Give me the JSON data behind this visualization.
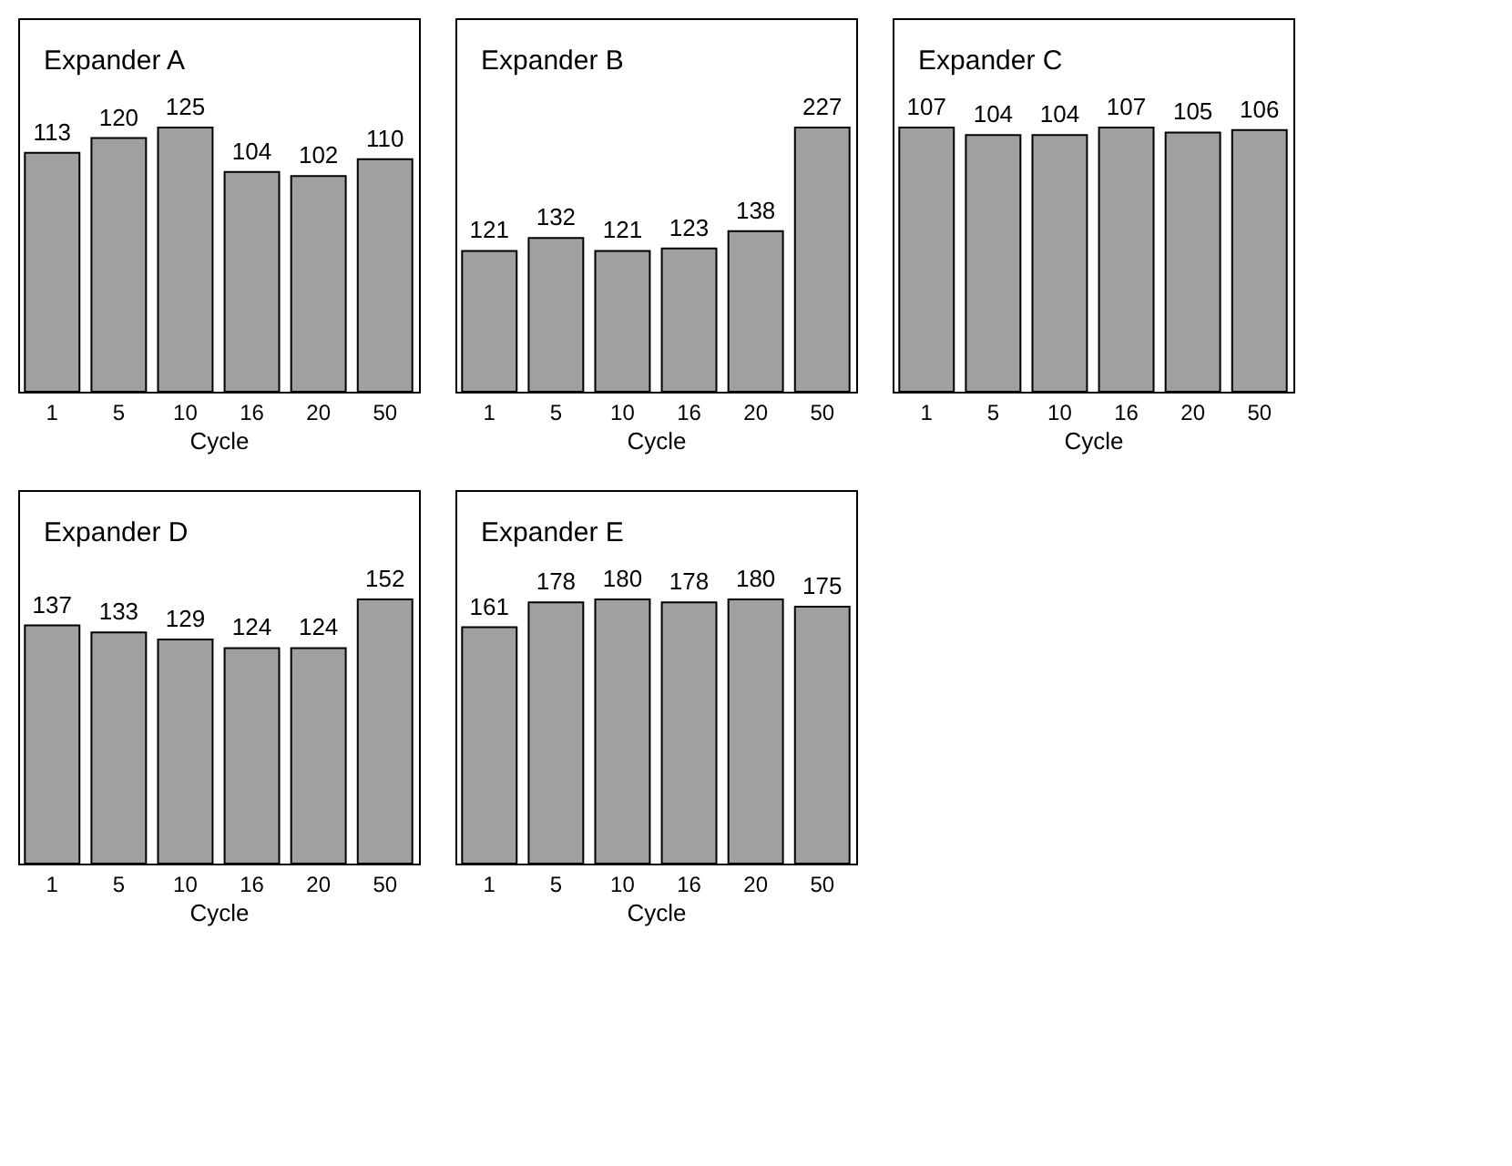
{
  "chart_data": [
    {
      "type": "bar",
      "title": "Expander A",
      "xlabel": "Cycle",
      "categories": [
        "1",
        "5",
        "10",
        "16",
        "20",
        "50"
      ],
      "values": [
        113,
        120,
        125,
        104,
        102,
        110
      ],
      "color": "#a0a0a0",
      "data_labels": true
    },
    {
      "type": "bar",
      "title": "Expander B",
      "xlabel": "Cycle",
      "categories": [
        "1",
        "5",
        "10",
        "16",
        "20",
        "50"
      ],
      "values": [
        121,
        132,
        121,
        123,
        138,
        227
      ],
      "color": "#a0a0a0",
      "data_labels": true
    },
    {
      "type": "bar",
      "title": "Expander C",
      "xlabel": "Cycle",
      "categories": [
        "1",
        "5",
        "10",
        "16",
        "20",
        "50"
      ],
      "values": [
        107,
        104,
        104,
        107,
        105,
        106
      ],
      "color": "#a0a0a0",
      "data_labels": true
    },
    {
      "type": "bar",
      "title": "Expander D",
      "xlabel": "Cycle",
      "categories": [
        "1",
        "5",
        "10",
        "16",
        "20",
        "50"
      ],
      "values": [
        137,
        133,
        129,
        124,
        124,
        152
      ],
      "color": "#a0a0a0",
      "data_labels": true
    },
    {
      "type": "bar",
      "title": "Expander E",
      "xlabel": "Cycle",
      "categories": [
        "1",
        "5",
        "10",
        "16",
        "20",
        "50"
      ],
      "values": [
        161,
        178,
        180,
        178,
        180,
        175
      ],
      "color": "#a0a0a0",
      "data_labels": true
    }
  ]
}
